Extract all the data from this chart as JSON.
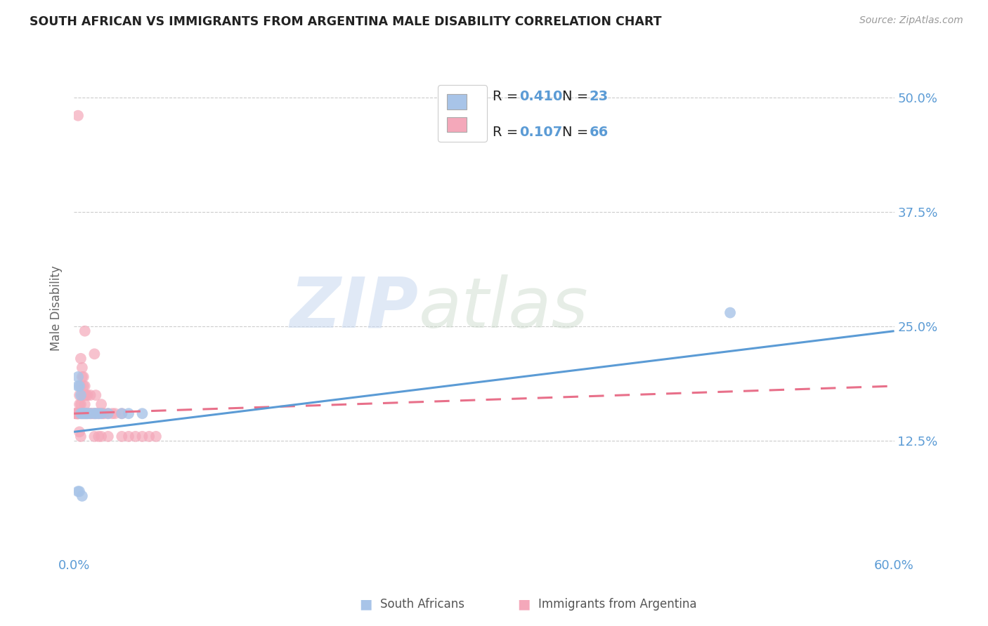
{
  "title": "SOUTH AFRICAN VS IMMIGRANTS FROM ARGENTINA MALE DISABILITY CORRELATION CHART",
  "source": "Source: ZipAtlas.com",
  "tick_color": "#5b9bd5",
  "ylabel": "Male Disability",
  "xlim": [
    0.0,
    0.6
  ],
  "ylim": [
    0.0,
    0.54
  ],
  "ytick_values": [
    0.125,
    0.25,
    0.375,
    0.5
  ],
  "ytick_labels": [
    "12.5%",
    "25.0%",
    "37.5%",
    "50.0%"
  ],
  "watermark_zip": "ZIP",
  "watermark_atlas": "atlas",
  "color_blue": "#a8c4e8",
  "color_pink": "#f4a8ba",
  "trendline_blue": "#5b9bd5",
  "trendline_pink": "#e8708a",
  "blue_trend_start_y": 0.135,
  "blue_trend_end_y": 0.245,
  "pink_trend_start_y": 0.155,
  "pink_trend_end_y": 0.185,
  "blue_N": 23,
  "pink_N": 66,
  "blue_R": 0.41,
  "pink_R": 0.107,
  "scatter_blue_x": [
    0.003,
    0.003,
    0.004,
    0.005,
    0.005,
    0.006,
    0.007,
    0.008,
    0.009,
    0.01,
    0.012,
    0.015,
    0.016,
    0.018,
    0.02,
    0.025,
    0.035,
    0.04,
    0.05,
    0.003,
    0.004,
    0.006,
    0.48
  ],
  "scatter_blue_y": [
    0.195,
    0.185,
    0.185,
    0.175,
    0.155,
    0.155,
    0.155,
    0.155,
    0.155,
    0.155,
    0.155,
    0.155,
    0.155,
    0.155,
    0.155,
    0.155,
    0.155,
    0.155,
    0.155,
    0.07,
    0.07,
    0.065,
    0.265
  ],
  "scatter_pink_x": [
    0.001,
    0.001,
    0.002,
    0.002,
    0.002,
    0.003,
    0.003,
    0.003,
    0.003,
    0.003,
    0.004,
    0.004,
    0.004,
    0.004,
    0.005,
    0.005,
    0.005,
    0.005,
    0.005,
    0.006,
    0.006,
    0.006,
    0.006,
    0.007,
    0.007,
    0.007,
    0.007,
    0.008,
    0.008,
    0.008,
    0.008,
    0.009,
    0.009,
    0.01,
    0.01,
    0.011,
    0.012,
    0.012,
    0.013,
    0.014,
    0.015,
    0.015,
    0.016,
    0.016,
    0.017,
    0.018,
    0.018,
    0.019,
    0.02,
    0.02,
    0.021,
    0.022,
    0.025,
    0.025,
    0.028,
    0.03,
    0.035,
    0.035,
    0.04,
    0.045,
    0.05,
    0.055,
    0.06,
    0.003,
    0.008,
    0.015
  ],
  "scatter_pink_y": [
    0.155,
    0.155,
    0.155,
    0.155,
    0.155,
    0.155,
    0.155,
    0.155,
    0.155,
    0.155,
    0.175,
    0.165,
    0.155,
    0.135,
    0.215,
    0.185,
    0.165,
    0.155,
    0.13,
    0.205,
    0.195,
    0.175,
    0.155,
    0.195,
    0.185,
    0.175,
    0.155,
    0.185,
    0.175,
    0.165,
    0.155,
    0.175,
    0.155,
    0.175,
    0.155,
    0.155,
    0.175,
    0.155,
    0.155,
    0.155,
    0.155,
    0.13,
    0.175,
    0.155,
    0.155,
    0.155,
    0.13,
    0.155,
    0.165,
    0.13,
    0.155,
    0.155,
    0.155,
    0.13,
    0.155,
    0.155,
    0.155,
    0.13,
    0.13,
    0.13,
    0.13,
    0.13,
    0.13,
    0.48,
    0.245,
    0.22
  ]
}
